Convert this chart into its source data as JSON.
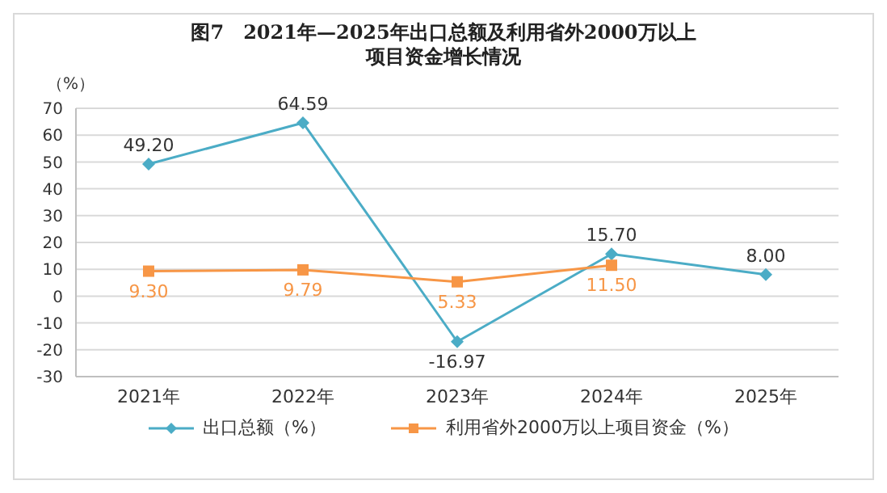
{
  "chart_data": {
    "type": "line",
    "title": "图7　2021年—2025年出口总额及利用省外2000万以上项目资金增长情况",
    "ylabel": "（%）",
    "categories": [
      "2021年",
      "2022年",
      "2023年",
      "2024年",
      "2025年"
    ],
    "series": [
      {
        "name": "出口总额（%）",
        "color": "#4bacc6",
        "marker": "diamond",
        "values": [
          49.2,
          64.59,
          -16.97,
          15.7,
          8.0
        ],
        "value_labels": [
          "49.20",
          "64.59",
          "-16.97",
          "15.70",
          "8.00"
        ]
      },
      {
        "name": "利用省外2000万以上项目资金（%）",
        "color": "#f79646",
        "marker": "square",
        "values": [
          9.3,
          9.79,
          5.33,
          11.5,
          null
        ],
        "value_labels": [
          "9.30",
          "9.79",
          "5.33",
          "11.50",
          null
        ]
      }
    ],
    "ylim": [
      -30,
      70
    ],
    "yticks": [
      -30,
      -20,
      -10,
      0,
      10,
      20,
      30,
      40,
      50,
      60,
      70
    ],
    "grid": "y",
    "legend": "bottom",
    "line_style": "solid"
  }
}
